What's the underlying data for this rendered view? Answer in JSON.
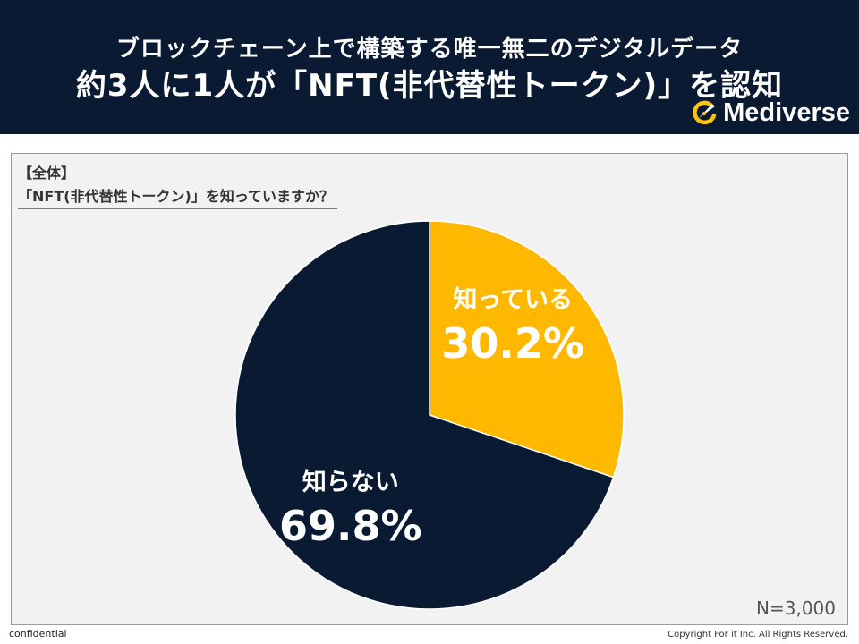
{
  "header": {
    "subtitle": "ブロックチェーン上で構築する唯一無二のデジタルデータ",
    "title": "約3人に1人が「NFT(非代替性トークン)」を認知",
    "brand": "Mediverse"
  },
  "question": {
    "scope": "【全体】",
    "text": "「NFT(非代替性トークン)」を知っていますか？"
  },
  "sample_size": "N=3,000",
  "footer": {
    "left": "confidential",
    "right": "Copyright For it Inc. All Rights Reserved."
  },
  "colors": {
    "header_bg": "#0b1a33",
    "know": "#ffb800",
    "dont_know": "#0b1a33",
    "brand_accent": "#ffc20e"
  },
  "chart_data": {
    "type": "pie",
    "categories": [
      "知っている",
      "知らない"
    ],
    "values": [
      30.2,
      69.8
    ],
    "labels": [
      "30.2%",
      "69.8%"
    ],
    "colors": [
      "#ffb800",
      "#0b1a33"
    ],
    "legend": "none"
  }
}
